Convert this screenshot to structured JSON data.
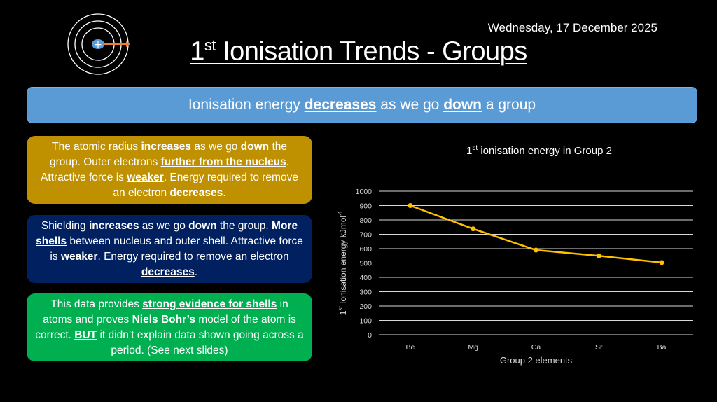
{
  "slide": {
    "date": "Wednesday, 17 December 2025",
    "title_sup": "st",
    "title_prefix": "1",
    "title_rest": " Ionisation Trends - Groups",
    "logo": "atom-shells-icon",
    "banner": [
      {
        "t": "Ionisation energy ",
        "b": false
      },
      {
        "t": "decreases",
        "b": true
      },
      {
        "t": " as we go ",
        "b": false
      },
      {
        "t": "down",
        "b": true
      },
      {
        "t": " a group",
        "b": false
      }
    ],
    "boxes": [
      {
        "color": "#BF9000",
        "segments": [
          {
            "t": "The atomic radius ",
            "b": false
          },
          {
            "t": "increases",
            "b": true
          },
          {
            "t": " as we go ",
            "b": false
          },
          {
            "t": "down",
            "b": true
          },
          {
            "t": " the group. Outer electrons ",
            "b": false
          },
          {
            "t": "further from the nucleus",
            "b": true
          },
          {
            "t": ". Attractive force is ",
            "b": false
          },
          {
            "t": "weaker",
            "b": true
          },
          {
            "t": ". Energy required to remove an electron ",
            "b": false
          },
          {
            "t": "decreases",
            "b": true
          },
          {
            "t": ".",
            "b": false
          }
        ]
      },
      {
        "color": "#002060",
        "segments": [
          {
            "t": "Shielding ",
            "b": false
          },
          {
            "t": "increases",
            "b": true
          },
          {
            "t": " as we go ",
            "b": false
          },
          {
            "t": "down",
            "b": true
          },
          {
            "t": " the group. ",
            "b": false
          },
          {
            "t": "More shells",
            "b": true
          },
          {
            "t": " between nucleus and outer shell. Attractive force is ",
            "b": false
          },
          {
            "t": "weaker",
            "b": true
          },
          {
            "t": ". Energy required to remove an electron ",
            "b": false
          },
          {
            "t": "decreases",
            "b": true
          },
          {
            "t": ".",
            "b": false
          }
        ]
      },
      {
        "color": "#00B050",
        "segments": [
          {
            "t": "This data provides ",
            "b": false
          },
          {
            "t": "strong evidence for shells",
            "b": true
          },
          {
            "t": " in atoms and proves ",
            "b": false
          },
          {
            "t": "Niels Bohr’s",
            "b": true
          },
          {
            "t": " model of the atom is correct. ",
            "b": false
          },
          {
            "t": "BUT",
            "b": true
          },
          {
            "t": " it didn’t explain data shown going across a period. (See next slides)",
            "b": false
          }
        ]
      }
    ]
  },
  "chart_data": {
    "type": "line",
    "title_prefix": "1",
    "title_sup": "st",
    "title_rest": " ionisation energy in Group 2",
    "xlabel": "Group 2 elements",
    "ylabel_prefix": "1",
    "ylabel_sup": "st",
    "ylabel_rest": " Ionisation energy kJmol",
    "ylabel_unit_sup": "-1",
    "categories": [
      "Be",
      "Mg",
      "Ca",
      "Sr",
      "Ba"
    ],
    "values": [
      900,
      738,
      590,
      550,
      503
    ],
    "ylim": [
      0,
      1000
    ],
    "yticks": [
      0,
      100,
      200,
      300,
      400,
      500,
      600,
      700,
      800,
      900,
      1000
    ],
    "grid": true,
    "legend": "none",
    "line_color": "#FFC000"
  }
}
